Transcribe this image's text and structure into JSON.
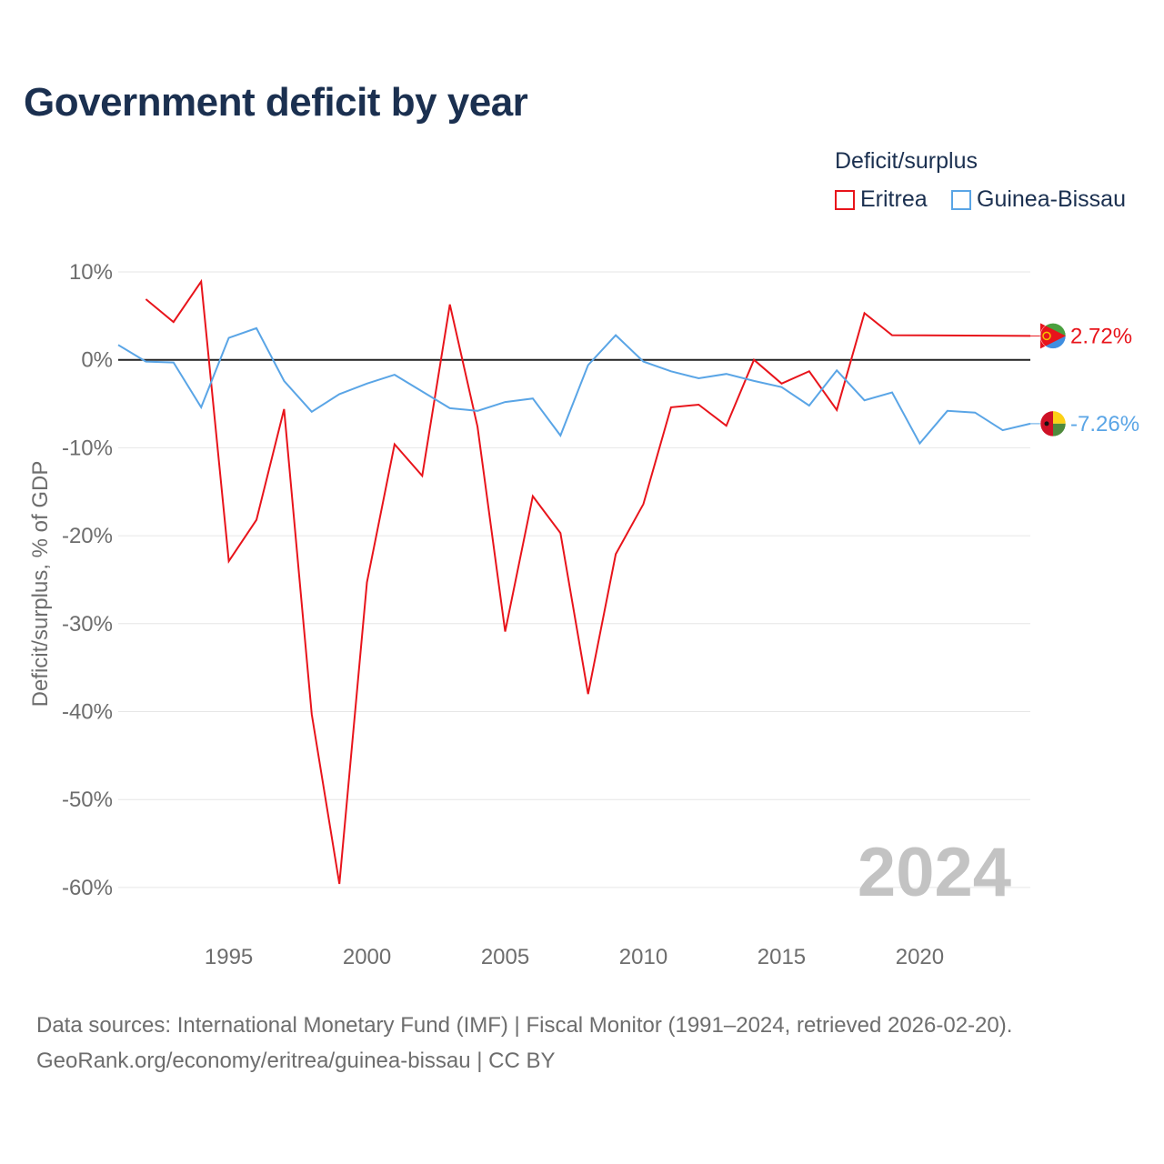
{
  "title": "Government deficit by year",
  "legend": {
    "title": "Deficit/surplus",
    "items": [
      {
        "name": "Eritrea",
        "color": "#e8141b"
      },
      {
        "name": "Guinea-Bissau",
        "color": "#5aa5e6"
      }
    ]
  },
  "year_label": "2024",
  "source_line1": "Data sources: International Monetary Fund (IMF) | Fiscal Monitor (1991–2024, retrieved 2026-02-20).",
  "source_line2": "GeoRank.org/economy/eritrea/guinea-bissau | CC BY",
  "chart_data": {
    "type": "line",
    "title": "Government deficit by year",
    "xlabel": "",
    "ylabel": "Deficit/surplus, % of GDP",
    "xlim": [
      1991,
      2024
    ],
    "ylim": [
      -65,
      10
    ],
    "x_ticks": [
      1995,
      2000,
      2005,
      2010,
      2015,
      2020
    ],
    "y_ticks": [
      10,
      0,
      -10,
      -20,
      -30,
      -40,
      -50,
      -60
    ],
    "y_tick_labels": [
      "10%",
      "0%",
      "-10%",
      "-20%",
      "-30%",
      "-40%",
      "-50%",
      "-60%"
    ],
    "series": [
      {
        "name": "Eritrea",
        "color": "#e8141b",
        "x": [
          1992,
          1993,
          1994,
          1995,
          1996,
          1997,
          1998,
          1999,
          2000,
          2001,
          2002,
          2003,
          2004,
          2005,
          2006,
          2007,
          2008,
          2009,
          2010,
          2011,
          2012,
          2013,
          2014,
          2015,
          2016,
          2017,
          2018,
          2019,
          2024
        ],
        "values": [
          6.9,
          4.3,
          8.9,
          -22.9,
          -18.2,
          -5.6,
          -40.3,
          -59.6,
          -25.3,
          -9.6,
          -13.2,
          6.3,
          -7.6,
          -30.9,
          -15.5,
          -19.7,
          -38.0,
          -22.1,
          -16.4,
          -5.4,
          -5.1,
          -7.5,
          0.0,
          -2.7,
          -1.3,
          -5.7,
          5.3,
          2.8,
          2.72
        ],
        "end_label": "2.72%"
      },
      {
        "name": "Guinea-Bissau",
        "color": "#5aa5e6",
        "x": [
          1991,
          1992,
          1993,
          1994,
          1995,
          1996,
          1997,
          1998,
          1999,
          2000,
          2001,
          2002,
          2003,
          2004,
          2005,
          2006,
          2007,
          2008,
          2009,
          2010,
          2011,
          2012,
          2013,
          2014,
          2015,
          2016,
          2017,
          2018,
          2019,
          2020,
          2021,
          2022,
          2023,
          2024
        ],
        "values": [
          1.7,
          -0.2,
          -0.3,
          -5.4,
          2.5,
          3.6,
          -2.4,
          -5.9,
          -3.9,
          -2.7,
          -1.7,
          -3.6,
          -5.5,
          -5.8,
          -4.8,
          -4.4,
          -8.6,
          -0.6,
          2.8,
          -0.2,
          -1.3,
          -2.1,
          -1.6,
          -2.4,
          -3.1,
          -5.2,
          -1.2,
          -4.6,
          -3.7,
          -9.5,
          -5.8,
          -6.0,
          -8.0,
          -7.26
        ],
        "end_label": "-7.26%"
      }
    ]
  }
}
